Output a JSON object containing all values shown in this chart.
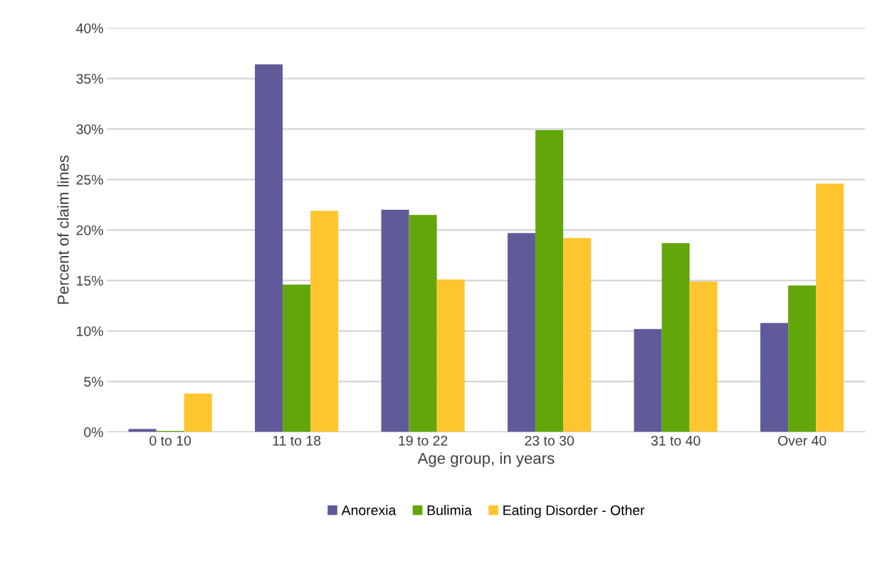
{
  "chart_data": {
    "type": "bar",
    "xlabel": "Age group, in years",
    "ylabel": "Percent of claim lines",
    "categories": [
      "0 to 10",
      "11 to 18",
      "19 to 22",
      "23 to 30",
      "31 to 40",
      "Over 40"
    ],
    "series": [
      {
        "name": "Anorexia",
        "color": "#5f5b9a",
        "values": [
          0.3,
          36.4,
          22.0,
          19.7,
          10.2,
          10.8
        ]
      },
      {
        "name": "Bulimia",
        "color": "#62a60a",
        "values": [
          0.1,
          14.6,
          21.5,
          29.9,
          18.7,
          14.5
        ]
      },
      {
        "name": "Eating Disorder - Other",
        "color": "#fec52e",
        "values": [
          3.8,
          21.9,
          15.1,
          19.2,
          14.9,
          24.6
        ]
      }
    ],
    "ylim": [
      0,
      40
    ],
    "yticks": [
      {
        "value": 0,
        "label": "0%"
      },
      {
        "value": 5,
        "label": "5%"
      },
      {
        "value": 10,
        "label": "10%"
      },
      {
        "value": 15,
        "label": "15%"
      },
      {
        "value": 20,
        "label": "20%"
      },
      {
        "value": 25,
        "label": "25%"
      },
      {
        "value": 30,
        "label": "30%"
      },
      {
        "value": 35,
        "label": "35%"
      },
      {
        "value": 40,
        "label": "40%"
      }
    ],
    "grid": "y",
    "legend": "bottom"
  }
}
